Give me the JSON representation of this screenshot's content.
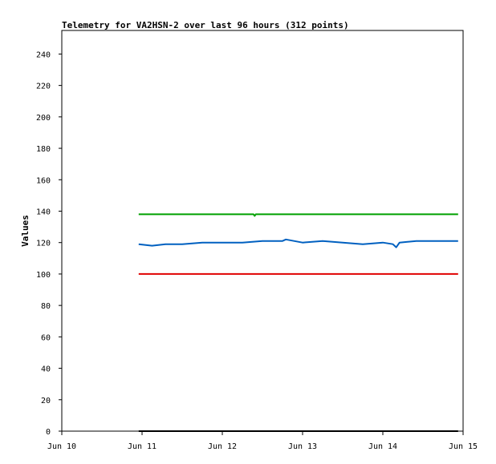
{
  "chart_data": {
    "type": "line",
    "title": "Telemetry for VA2HSN-2 over last 96 hours (312 points)",
    "ylabel": "Values",
    "xlabel": "",
    "x_ticks": [
      "Jun 10",
      "Jun 11",
      "Jun 12",
      "Jun 13",
      "Jun 14",
      "Jun 15"
    ],
    "y_ticks": [
      0,
      20,
      40,
      60,
      80,
      100,
      120,
      140,
      160,
      180,
      200,
      220,
      240
    ],
    "xlim": [
      "Jun 10",
      "Jun 15"
    ],
    "ylim": [
      0,
      255
    ],
    "grid": false,
    "legend": "none",
    "series": [
      {
        "color": "#00a000",
        "x": [
          "Jun 10 23:00",
          "Jun 12 09:20",
          "Jun 12 09:40",
          "Jun 12 10:00",
          "Jun 14 22:30"
        ],
        "values": [
          138,
          138,
          137,
          138,
          138
        ]
      },
      {
        "color": "#0060c0",
        "x": [
          "Jun 10 23:00",
          "Jun 11 03:00",
          "Jun 11 07:00",
          "Jun 11 12:00",
          "Jun 11 18:00",
          "Jun 12 00:00",
          "Jun 12 06:00",
          "Jun 12 12:00",
          "Jun 12 18:00",
          "Jun 12 19:00",
          "Jun 13 00:00",
          "Jun 13 06:00",
          "Jun 13 12:00",
          "Jun 13 18:00",
          "Jun 14 00:00",
          "Jun 14 03:00",
          "Jun 14 04:00",
          "Jun 14 05:00",
          "Jun 14 10:00",
          "Jun 14 16:00",
          "Jun 14 20:00",
          "Jun 14 22:30"
        ],
        "values": [
          119,
          118,
          119,
          119,
          120,
          120,
          120,
          121,
          121,
          122,
          120,
          121,
          120,
          119,
          120,
          119,
          117,
          120,
          121,
          121,
          121,
          121
        ]
      },
      {
        "color": "#e00000",
        "x": [
          "Jun 10 23:00",
          "Jun 14 22:30"
        ],
        "values": [
          100,
          100
        ]
      },
      {
        "color": "#000000",
        "x": [
          "Jun 10 23:00",
          "Jun 14 22:30"
        ],
        "values": [
          0,
          0
        ]
      }
    ]
  }
}
